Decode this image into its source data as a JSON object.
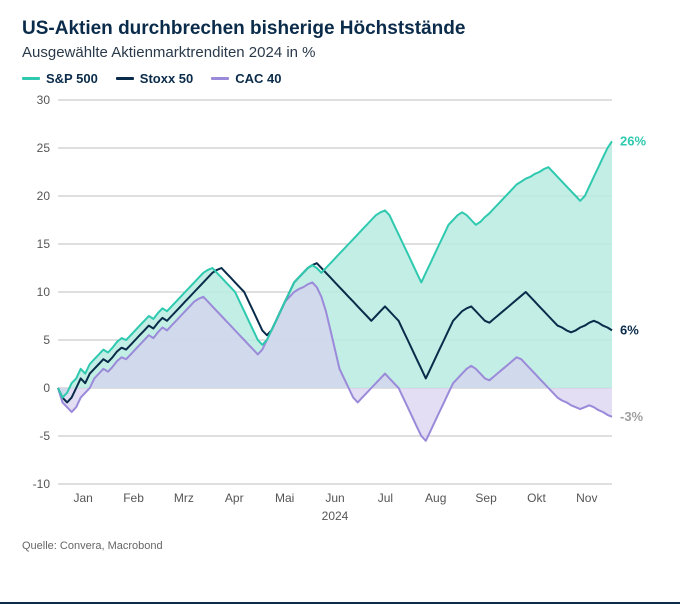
{
  "title": "US-Aktien durchbrechen bisherige Höchststände",
  "subtitle": "Ausgewählte Aktienmarktrenditen 2024 in %",
  "source": "Quelle: Convera, Macrobond",
  "legend": {
    "sp500": "S&P 500",
    "stoxx50": "Stoxx 50",
    "cac40": "CAC 40"
  },
  "end_labels": {
    "sp500": "26%",
    "stoxx50": "6%",
    "cac40": "-3%"
  },
  "chart": {
    "type": "area-line",
    "background_color": "#ffffff",
    "grid_color": "#bfbfbf",
    "title_fontsize": 19,
    "subtitle_fontsize": 15,
    "axis_fontsize": 12,
    "label_color": "#555555",
    "ylim": [
      -10,
      30
    ],
    "ytick_step": 5,
    "yticks": [
      -10,
      -5,
      0,
      5,
      10,
      15,
      20,
      25,
      30
    ],
    "x_labels": [
      "Jan",
      "Feb",
      "Mrz",
      "Apr",
      "Mai",
      "Jun",
      "Jul",
      "Aug",
      "Sep",
      "Okt",
      "Nov"
    ],
    "x_year_label": "2024",
    "series": {
      "sp500": {
        "color": "#2fc9b0",
        "fill": "#b8ebe0",
        "fill_opacity": 0.85,
        "line_width": 2,
        "end_label_color": "#2fc9b0",
        "data": [
          0,
          -1,
          -0.5,
          0.5,
          1,
          2,
          1.5,
          2.5,
          3,
          3.5,
          4,
          3.7,
          4.2,
          4.8,
          5.2,
          5,
          5.5,
          6,
          6.5,
          7,
          7.5,
          7.2,
          7.8,
          8.3,
          8,
          8.5,
          9,
          9.5,
          10,
          10.5,
          11,
          11.5,
          12,
          12.3,
          12.5,
          12,
          11.5,
          11,
          10.5,
          10,
          9,
          8,
          7,
          6,
          5,
          4.5,
          5,
          6,
          7,
          8,
          9,
          10,
          11,
          11.5,
          12,
          12.5,
          12.8,
          12.5,
          12,
          12.5,
          13,
          13.5,
          14,
          14.5,
          15,
          15.5,
          16,
          16.5,
          17,
          17.5,
          18,
          18.3,
          18.5,
          18,
          17,
          16,
          15,
          14,
          13,
          12,
          11,
          12,
          13,
          14,
          15,
          16,
          17,
          17.5,
          18,
          18.3,
          18,
          17.5,
          17,
          17.3,
          17.8,
          18.2,
          18.7,
          19.2,
          19.7,
          20.2,
          20.7,
          21.2,
          21.5,
          21.8,
          22,
          22.3,
          22.5,
          22.8,
          23,
          22.5,
          22,
          21.5,
          21,
          20.5,
          20,
          19.5,
          20,
          21,
          22,
          23,
          24,
          25,
          25.7
        ]
      },
      "stoxx50": {
        "color": "#0a2b4a",
        "fill": "none",
        "line_width": 2,
        "end_label_color": "#0a2b4a",
        "data": [
          0,
          -1,
          -1.5,
          -1,
          0,
          1,
          0.5,
          1.5,
          2,
          2.5,
          3,
          2.7,
          3.2,
          3.8,
          4.2,
          4,
          4.5,
          5,
          5.5,
          6,
          6.5,
          6.2,
          6.8,
          7.3,
          7,
          7.5,
          8,
          8.5,
          9,
          9.5,
          10,
          10.5,
          11,
          11.5,
          12,
          12.3,
          12.5,
          12,
          11.5,
          11,
          10.5,
          10,
          9,
          8,
          7,
          6,
          5.5,
          6,
          7,
          8,
          9,
          10,
          11,
          11.5,
          12,
          12.5,
          12.8,
          13,
          12.5,
          12,
          11.5,
          11,
          10.5,
          10,
          9.5,
          9,
          8.5,
          8,
          7.5,
          7,
          7.5,
          8,
          8.5,
          8,
          7.5,
          7,
          6,
          5,
          4,
          3,
          2,
          1,
          2,
          3,
          4,
          5,
          6,
          7,
          7.5,
          8,
          8.3,
          8.5,
          8,
          7.5,
          7,
          6.8,
          7.2,
          7.6,
          8,
          8.4,
          8.8,
          9.2,
          9.6,
          10,
          9.5,
          9,
          8.5,
          8,
          7.5,
          7,
          6.5,
          6.3,
          6,
          5.8,
          6,
          6.3,
          6.5,
          6.8,
          7,
          6.8,
          6.5,
          6.3,
          6
        ]
      },
      "cac40": {
        "color": "#9b8ad9",
        "fill": "#d7d0f0",
        "fill_opacity": 0.7,
        "line_width": 2,
        "end_label_color": "#a0a0a0",
        "data": [
          0,
          -1.5,
          -2,
          -2.5,
          -2,
          -1,
          -0.5,
          0,
          1,
          1.5,
          2,
          1.7,
          2.2,
          2.8,
          3.2,
          3,
          3.5,
          4,
          4.5,
          5,
          5.5,
          5.2,
          5.8,
          6.3,
          6,
          6.5,
          7,
          7.5,
          8,
          8.5,
          9,
          9.3,
          9.5,
          9,
          8.5,
          8,
          7.5,
          7,
          6.5,
          6,
          5.5,
          5,
          4.5,
          4,
          3.5,
          4,
          5,
          6,
          7,
          8,
          9,
          9.5,
          10,
          10.3,
          10.5,
          10.8,
          11,
          10.5,
          9.5,
          8,
          6,
          4,
          2,
          1,
          0,
          -1,
          -1.5,
          -1,
          -0.5,
          0,
          0.5,
          1,
          1.5,
          1,
          0.5,
          0,
          -1,
          -2,
          -3,
          -4,
          -5,
          -5.5,
          -4.5,
          -3.5,
          -2.5,
          -1.5,
          -0.5,
          0.5,
          1,
          1.5,
          2,
          2.3,
          2,
          1.5,
          1,
          0.8,
          1.2,
          1.6,
          2,
          2.4,
          2.8,
          3.2,
          3,
          2.5,
          2,
          1.5,
          1,
          0.5,
          0,
          -0.5,
          -1,
          -1.3,
          -1.5,
          -1.8,
          -2,
          -2.2,
          -2,
          -1.8,
          -2,
          -2.3,
          -2.5,
          -2.8,
          -3
        ]
      }
    }
  }
}
